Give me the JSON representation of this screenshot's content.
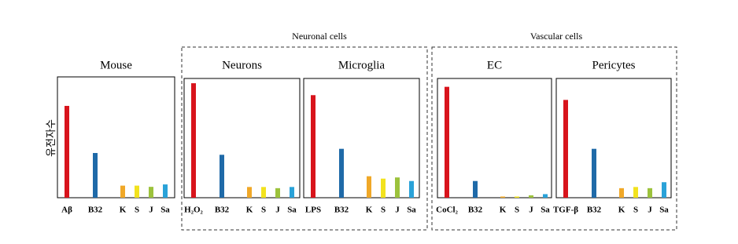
{
  "groups": [
    {
      "title": "Neuronal cells"
    },
    {
      "title": "Vascular cells"
    }
  ],
  "chart_data": [
    {
      "type": "bar",
      "title": "Mouse",
      "ylabel": "유전자수",
      "categories": [
        "Aβ",
        "B32",
        "K",
        "S",
        "J",
        "Sa"
      ],
      "values": [
        76,
        37,
        10,
        10,
        9,
        11
      ],
      "colors": [
        "#d8141c",
        "#1f6aa8",
        "#f0a828",
        "#f2e21e",
        "#9cc23c",
        "#2aa2d8"
      ],
      "ylim": [
        0,
        100
      ]
    },
    {
      "type": "bar",
      "title": "Neurons",
      "categories": [
        "H₂O₂",
        "B32",
        "K",
        "S",
        "J",
        "Sa"
      ],
      "values": [
        96,
        36,
        9,
        9,
        8,
        9
      ],
      "colors": [
        "#d8141c",
        "#1f6aa8",
        "#f0a828",
        "#f2e21e",
        "#9cc23c",
        "#2aa2d8"
      ],
      "ylim": [
        0,
        100
      ]
    },
    {
      "type": "bar",
      "title": "Microglia",
      "categories": [
        "LPS",
        "B32",
        "K",
        "S",
        "J",
        "Sa"
      ],
      "values": [
        86,
        41,
        18,
        16,
        17,
        14
      ],
      "colors": [
        "#d8141c",
        "#1f6aa8",
        "#f0a828",
        "#f2e21e",
        "#9cc23c",
        "#2aa2d8"
      ],
      "ylim": [
        0,
        100
      ]
    },
    {
      "type": "bar",
      "title": "EC",
      "categories": [
        "CoCl₂",
        "B32",
        "K",
        "S",
        "J",
        "Sa"
      ],
      "values": [
        93,
        14,
        1,
        1,
        2,
        3
      ],
      "colors": [
        "#d8141c",
        "#1f6aa8",
        "#f0a828",
        "#f2e21e",
        "#9cc23c",
        "#2aa2d8"
      ],
      "ylim": [
        0,
        100
      ]
    },
    {
      "type": "bar",
      "title": "Pericytes",
      "categories": [
        "TGF-β",
        "B32",
        "K",
        "S",
        "J",
        "Sa"
      ],
      "values": [
        82,
        41,
        8,
        9,
        8,
        13
      ],
      "colors": [
        "#d8141c",
        "#1f6aa8",
        "#f0a828",
        "#f2e21e",
        "#9cc23c",
        "#2aa2d8"
      ],
      "ylim": [
        0,
        100
      ]
    }
  ]
}
